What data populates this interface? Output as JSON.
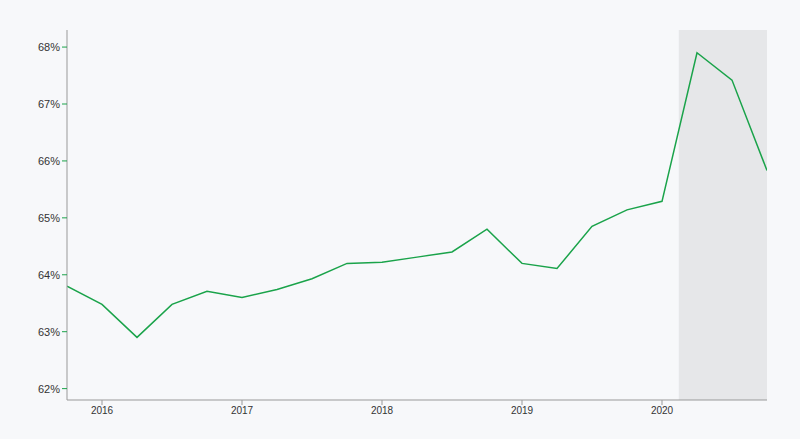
{
  "chart_data": {
    "type": "line",
    "x": [
      2015.75,
      2016,
      2016.25,
      2016.5,
      2016.75,
      2017,
      2017.25,
      2017.5,
      2017.75,
      2018,
      2018.25,
      2018.5,
      2018.75,
      2019,
      2019.25,
      2019.5,
      2019.75,
      2020,
      2020.25,
      2020.5,
      2020.75
    ],
    "values": [
      63.8,
      63.48,
      62.9,
      63.48,
      63.71,
      63.6,
      63.74,
      63.93,
      64.2,
      64.22,
      64.31,
      64.4,
      64.8,
      64.2,
      64.11,
      64.85,
      65.14,
      65.29,
      67.9,
      67.42,
      65.83
    ],
    "color": "#1aa34a",
    "xlim": [
      2015.75,
      2020.75
    ],
    "xticks": [
      2016,
      2017,
      2018,
      2019,
      2020
    ],
    "ylim": [
      61.8,
      68.3
    ],
    "yticks": [
      {
        "value": 62,
        "label": "62%"
      },
      {
        "value": 63,
        "label": "63%"
      },
      {
        "value": 64,
        "label": "64%"
      },
      {
        "value": 65,
        "label": "65%"
      },
      {
        "value": 66,
        "label": "66%"
      },
      {
        "value": 67,
        "label": "67%"
      },
      {
        "value": 68,
        "label": "68%"
      }
    ],
    "shaded_region": [
      2020.12,
      2020.75
    ],
    "grid": false
  }
}
